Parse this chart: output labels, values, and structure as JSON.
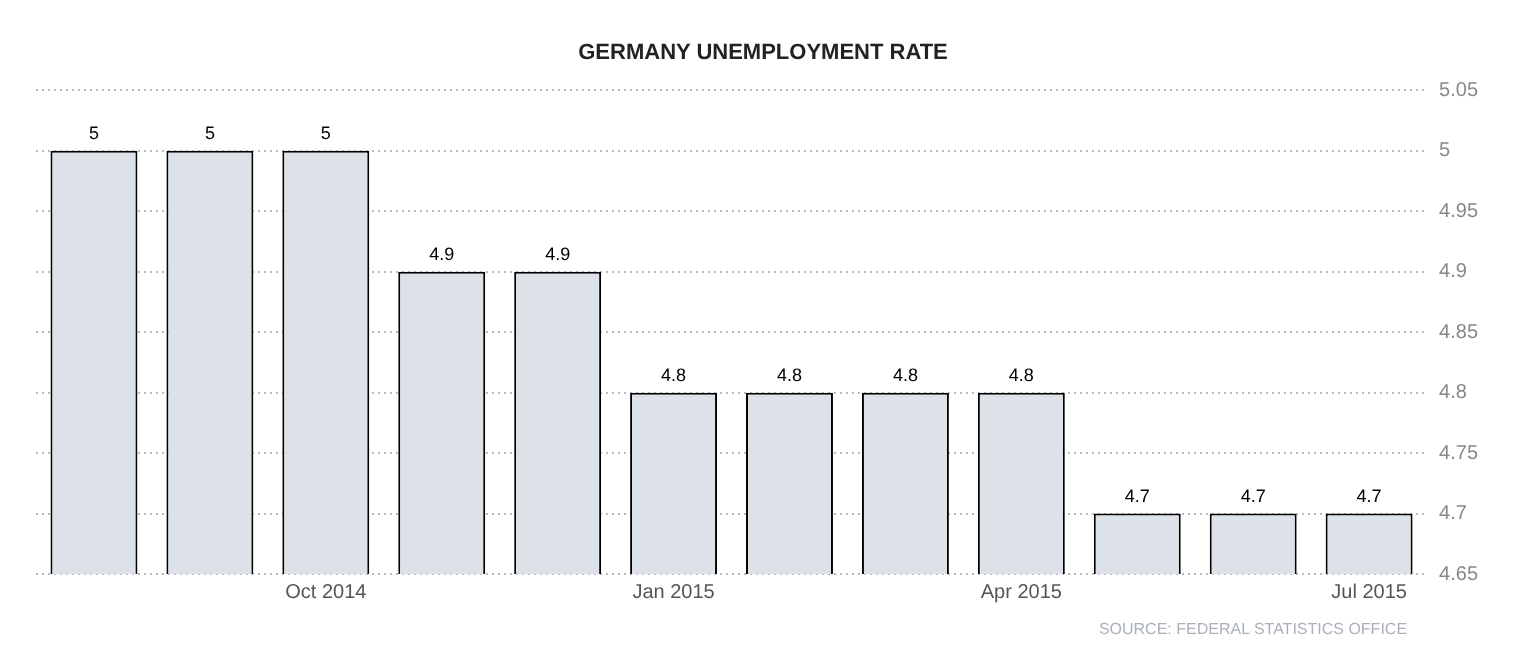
{
  "chart_data": {
    "type": "bar",
    "title": "GERMANY UNEMPLOYMENT RATE",
    "categories": [
      null,
      null,
      "Oct 2014",
      null,
      null,
      "Jan 2015",
      null,
      null,
      "Apr 2015",
      null,
      null,
      "Jul 2015"
    ],
    "values": [
      5,
      5,
      5,
      4.9,
      4.9,
      4.8,
      4.8,
      4.8,
      4.8,
      4.7,
      4.7,
      4.7
    ],
    "color": "#dde1e8",
    "ylim": [
      4.65,
      5.05
    ],
    "yticks": [
      4.65,
      4.7,
      4.75,
      4.8,
      4.85,
      4.9,
      4.95,
      5,
      5.05
    ],
    "grid": "y",
    "data_labels": true,
    "annotations": [
      "SOURCE: FEDERAL STATISTICS OFFICE"
    ]
  }
}
